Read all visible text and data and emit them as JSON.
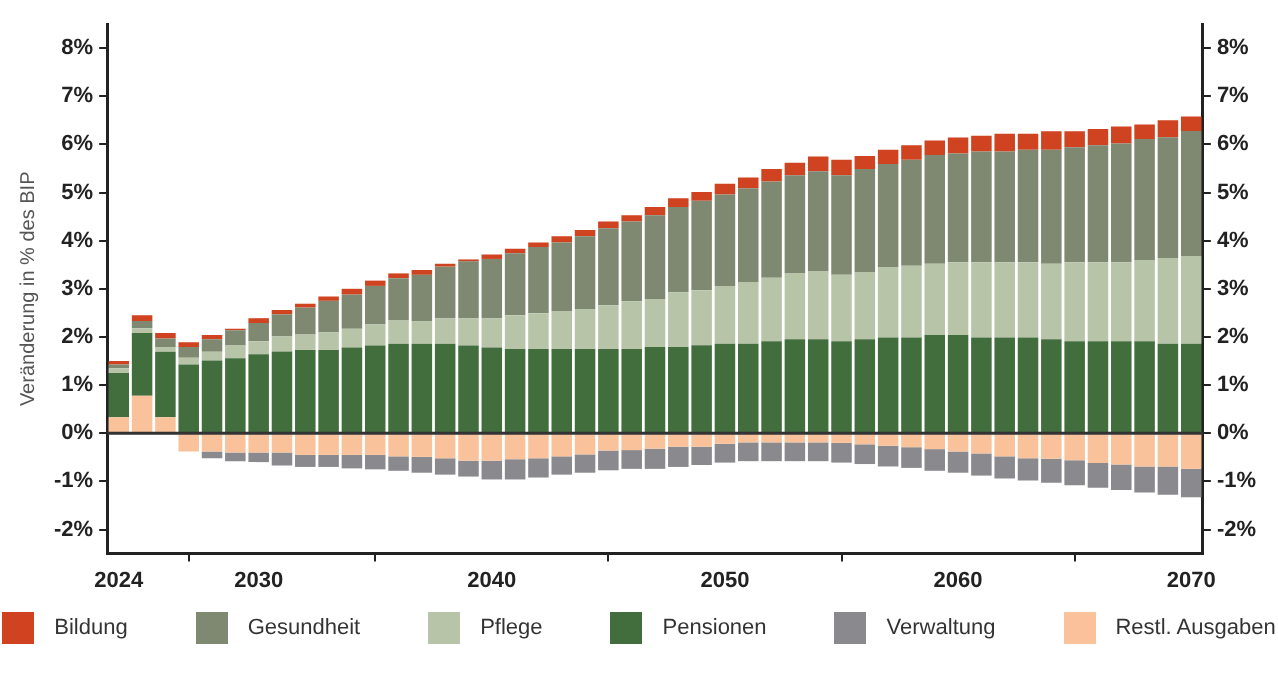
{
  "chart_data": {
    "type": "bar",
    "stacked": true,
    "ylabel": "Veränderung in % des BIP",
    "x": [
      2024,
      2025,
      2026,
      2027,
      2028,
      2029,
      2030,
      2031,
      2032,
      2033,
      2034,
      2035,
      2036,
      2037,
      2038,
      2039,
      2040,
      2041,
      2042,
      2043,
      2044,
      2045,
      2046,
      2047,
      2048,
      2049,
      2050,
      2051,
      2052,
      2053,
      2054,
      2055,
      2056,
      2057,
      2058,
      2059,
      2060,
      2061,
      2062,
      2063,
      2064,
      2065,
      2066,
      2067,
      2068,
      2069,
      2070
    ],
    "xlim": [
      2023.5,
      2070.5
    ],
    "xticks": [
      2024,
      2030,
      2040,
      2050,
      2060,
      2070
    ],
    "ylim": [
      -2.5,
      8.5
    ],
    "yticks": [
      {
        "value": -2,
        "label": "-2%"
      },
      {
        "value": -1,
        "label": "-1%"
      },
      {
        "value": 0,
        "label": "0%"
      },
      {
        "value": 1,
        "label": "1%"
      },
      {
        "value": 2,
        "label": "2%"
      },
      {
        "value": 3,
        "label": "3%"
      },
      {
        "value": 4,
        "label": "4%"
      },
      {
        "value": 5,
        "label": "5%"
      },
      {
        "value": 6,
        "label": "6%"
      },
      {
        "value": 7,
        "label": "7%"
      },
      {
        "value": 8,
        "label": "8%"
      }
    ],
    "y2lim": [
      -2.5,
      8.5
    ],
    "y2ticks": [
      {
        "value": -2,
        "label": "-2%"
      },
      {
        "value": -1,
        "label": "-1%"
      },
      {
        "value": 0,
        "label": "0%"
      },
      {
        "value": 1,
        "label": "1%"
      },
      {
        "value": 2,
        "label": "2%"
      },
      {
        "value": 3,
        "label": "3%"
      },
      {
        "value": 4,
        "label": "4%"
      },
      {
        "value": 5,
        "label": "5%"
      },
      {
        "value": 6,
        "label": "6%"
      },
      {
        "value": 7,
        "label": "7%"
      },
      {
        "value": 8,
        "label": "8%"
      }
    ],
    "grid": false,
    "legend": "bottom",
    "ref_lines": [
      {
        "axis": "y",
        "value": 0,
        "color": "#333333"
      }
    ],
    "series": [
      {
        "name": "Restl. Ausgaben",
        "color": "#f9c29a",
        "values": [
          0.33,
          0.78,
          0.33,
          -0.38,
          -0.38,
          -0.4,
          -0.4,
          -0.4,
          -0.45,
          -0.45,
          -0.45,
          -0.45,
          -0.48,
          -0.49,
          -0.52,
          -0.57,
          -0.57,
          -0.54,
          -0.52,
          -0.48,
          -0.44,
          -0.36,
          -0.35,
          -0.32,
          -0.28,
          -0.28,
          -0.22,
          -0.19,
          -0.19,
          -0.19,
          -0.19,
          -0.2,
          -0.23,
          -0.26,
          -0.29,
          -0.33,
          -0.38,
          -0.42,
          -0.48,
          -0.52,
          -0.53,
          -0.56,
          -0.62,
          -0.65,
          -0.69,
          -0.69,
          -0.74
        ]
      },
      {
        "name": "Verwaltung",
        "color": "#8a8a8e",
        "values": [
          0,
          0,
          0,
          0,
          -0.14,
          -0.18,
          -0.2,
          -0.27,
          -0.25,
          -0.25,
          -0.28,
          -0.3,
          -0.3,
          -0.33,
          -0.34,
          -0.33,
          -0.39,
          -0.42,
          -0.4,
          -0.38,
          -0.38,
          -0.41,
          -0.39,
          -0.42,
          -0.42,
          -0.38,
          -0.39,
          -0.39,
          -0.39,
          -0.39,
          -0.39,
          -0.41,
          -0.41,
          -0.43,
          -0.43,
          -0.45,
          -0.44,
          -0.46,
          -0.46,
          -0.46,
          -0.5,
          -0.52,
          -0.51,
          -0.53,
          -0.54,
          -0.59,
          -0.59
        ]
      },
      {
        "name": "Pensionen",
        "color": "#426e3e",
        "values": [
          0.92,
          1.3,
          1.36,
          1.43,
          1.51,
          1.56,
          1.64,
          1.7,
          1.73,
          1.73,
          1.78,
          1.82,
          1.86,
          1.86,
          1.86,
          1.82,
          1.78,
          1.75,
          1.75,
          1.75,
          1.75,
          1.75,
          1.75,
          1.79,
          1.79,
          1.83,
          1.86,
          1.86,
          1.91,
          1.95,
          1.95,
          1.91,
          1.95,
          1.99,
          1.99,
          2.04,
          2.04,
          1.99,
          1.99,
          1.99,
          1.95,
          1.91,
          1.91,
          1.91,
          1.91,
          1.86,
          1.86
        ]
      },
      {
        "name": "Pflege",
        "color": "#b7c4a8",
        "values": [
          0.1,
          0.1,
          0.1,
          0.14,
          0.18,
          0.26,
          0.27,
          0.31,
          0.32,
          0.37,
          0.39,
          0.44,
          0.48,
          0.47,
          0.53,
          0.57,
          0.61,
          0.7,
          0.74,
          0.78,
          0.83,
          0.91,
          0.99,
          1.0,
          1.14,
          1.14,
          1.2,
          1.28,
          1.32,
          1.37,
          1.41,
          1.38,
          1.39,
          1.45,
          1.49,
          1.48,
          1.51,
          1.56,
          1.56,
          1.56,
          1.57,
          1.64,
          1.64,
          1.64,
          1.69,
          1.78,
          1.82
        ]
      },
      {
        "name": "Gesundheit",
        "color": "#7f8870",
        "values": [
          0.08,
          0.15,
          0.18,
          0.22,
          0.26,
          0.32,
          0.38,
          0.46,
          0.56,
          0.65,
          0.71,
          0.8,
          0.88,
          0.96,
          1.07,
          1.18,
          1.23,
          1.29,
          1.38,
          1.43,
          1.51,
          1.6,
          1.66,
          1.74,
          1.77,
          1.86,
          1.9,
          1.95,
          2.0,
          2.04,
          2.08,
          2.07,
          2.15,
          2.15,
          2.2,
          2.26,
          2.26,
          2.3,
          2.3,
          2.34,
          2.37,
          2.39,
          2.43,
          2.47,
          2.51,
          2.51,
          2.6
        ]
      },
      {
        "name": "Bildung",
        "color": "#cf4320",
        "values": [
          0.07,
          0.12,
          0.11,
          0.1,
          0.09,
          0.03,
          0.1,
          0.09,
          0.08,
          0.09,
          0.12,
          0.11,
          0.1,
          0.1,
          0.06,
          0.04,
          0.09,
          0.09,
          0.09,
          0.13,
          0.13,
          0.14,
          0.13,
          0.17,
          0.18,
          0.18,
          0.22,
          0.22,
          0.26,
          0.26,
          0.31,
          0.32,
          0.27,
          0.3,
          0.3,
          0.3,
          0.33,
          0.33,
          0.37,
          0.33,
          0.38,
          0.33,
          0.34,
          0.35,
          0.3,
          0.35,
          0.3
        ]
      }
    ]
  }
}
